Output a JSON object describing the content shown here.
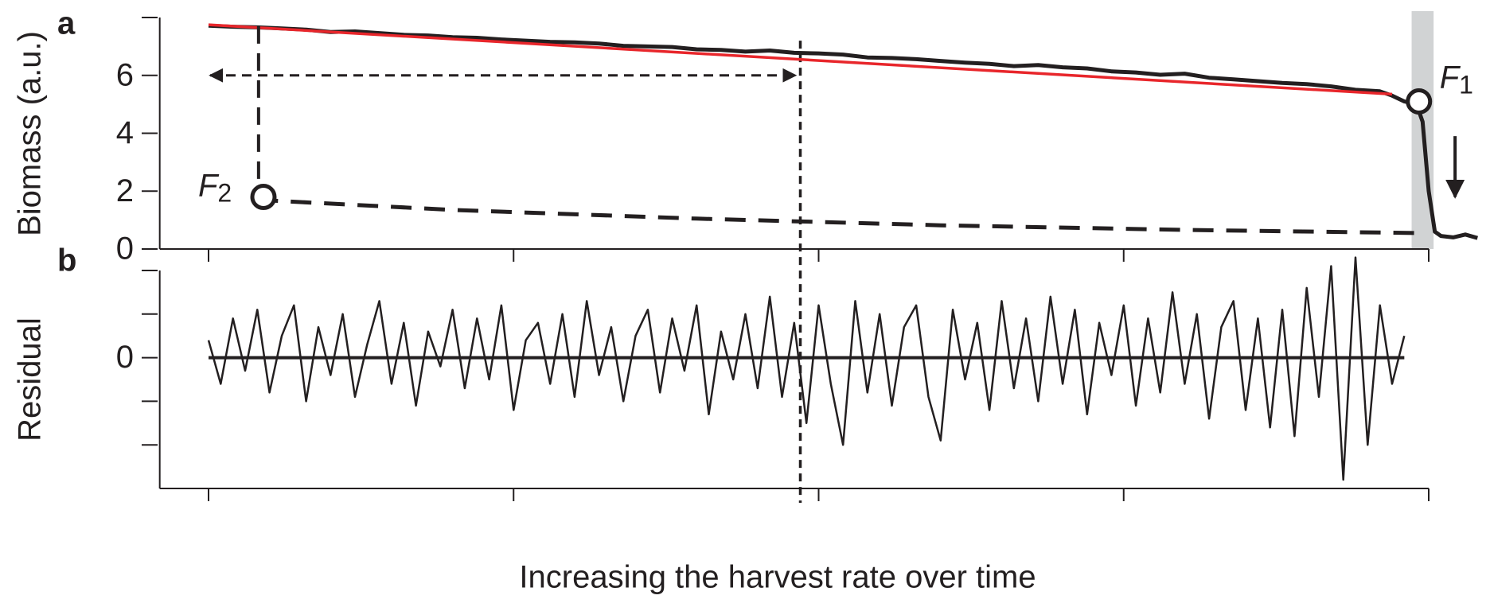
{
  "chart_data": [
    {
      "type": "line",
      "panel_label": "a",
      "ylabel": "Biomass (a.u.)",
      "xlim": [
        -4,
        100
      ],
      "minor_xticks": [
        0,
        25,
        50,
        75,
        100
      ],
      "ylim": [
        0,
        8
      ],
      "yticks": [
        0,
        2,
        4,
        6
      ],
      "minor_yticks": [
        8
      ],
      "series": [
        {
          "name": "biomass",
          "color": "#231f20",
          "x": [
            0,
            2,
            4,
            6,
            8,
            10,
            12,
            14,
            16,
            18,
            20,
            22,
            24,
            26,
            28,
            30,
            32,
            34,
            36,
            38,
            40,
            42,
            44,
            46,
            48,
            50,
            52,
            54,
            56,
            58,
            60,
            62,
            64,
            66,
            68,
            70,
            72,
            74,
            76,
            78,
            80,
            82,
            84,
            86,
            88,
            90,
            92,
            94,
            96,
            97,
            98,
            99,
            99.5,
            100,
            100.5,
            101,
            102,
            103,
            104
          ],
          "values": [
            7.72,
            7.68,
            7.66,
            7.62,
            7.58,
            7.5,
            7.52,
            7.46,
            7.4,
            7.38,
            7.32,
            7.3,
            7.24,
            7.2,
            7.16,
            7.14,
            7.1,
            7.02,
            7.0,
            6.98,
            6.9,
            6.88,
            6.82,
            6.86,
            6.78,
            6.76,
            6.72,
            6.62,
            6.6,
            6.56,
            6.5,
            6.44,
            6.4,
            6.32,
            6.36,
            6.28,
            6.24,
            6.14,
            6.1,
            6.02,
            6.06,
            5.92,
            5.86,
            5.8,
            5.74,
            5.7,
            5.62,
            5.5,
            5.45,
            5.3,
            5.1,
            5.0,
            4.4,
            2.0,
            0.6,
            0.45,
            0.4,
            0.5,
            0.38
          ]
        },
        {
          "name": "trend",
          "color": "#e8262b",
          "x": [
            0,
            97
          ],
          "values": [
            7.75,
            5.35
          ]
        },
        {
          "name": "alternative state",
          "color": "#231f20",
          "dashed": true,
          "x": [
            4,
            20,
            40,
            60,
            80,
            99.5
          ],
          "values": [
            1.7,
            1.35,
            1.05,
            0.82,
            0.66,
            0.55
          ]
        }
      ],
      "shade_x": [
        98.6,
        100.4
      ],
      "shade_color": "#d1d3d4",
      "guide_x": 48.5,
      "arrow": {
        "x": [
          0,
          48.5
        ],
        "y": 6
      },
      "points": [
        {
          "label": "F",
          "sub": "1",
          "x": 99.2,
          "y": 5.1
        },
        {
          "label": "F",
          "sub": "2",
          "x": 4.5,
          "y": 1.8
        }
      ]
    },
    {
      "type": "line",
      "panel_label": "b",
      "ylabel": "Residual",
      "xlabel": "Increasing the harvest rate over time",
      "xlim": [
        -4,
        100
      ],
      "minor_xticks": [
        0,
        25,
        50,
        75,
        100
      ],
      "ylim": [
        -3,
        2
      ],
      "yticks": [
        0
      ],
      "minor_yticks": [
        -2,
        -1,
        1,
        2
      ],
      "series": [
        {
          "name": "residual",
          "color": "#231f20",
          "x": [
            0,
            1,
            2,
            3,
            4,
            5,
            6,
            7,
            8,
            9,
            10,
            11,
            12,
            13,
            14,
            15,
            16,
            17,
            18,
            19,
            20,
            21,
            22,
            23,
            24,
            25,
            26,
            27,
            28,
            29,
            30,
            31,
            32,
            33,
            34,
            35,
            36,
            37,
            38,
            39,
            40,
            41,
            42,
            43,
            44,
            45,
            46,
            47,
            48,
            49,
            50,
            51,
            52,
            53,
            54,
            55,
            56,
            57,
            58,
            59,
            60,
            61,
            62,
            63,
            64,
            65,
            66,
            67,
            68,
            69,
            70,
            71,
            72,
            73,
            74,
            75,
            76,
            77,
            78,
            79,
            80,
            81,
            82,
            83,
            84,
            85,
            86,
            87,
            88,
            89,
            90,
            91,
            92,
            93,
            94,
            95,
            96,
            97,
            98
          ],
          "values": [
            0.4,
            -0.6,
            0.9,
            -0.3,
            1.1,
            -0.8,
            0.5,
            1.2,
            -1.0,
            0.7,
            -0.4,
            1.0,
            -0.9,
            0.3,
            1.3,
            -0.6,
            0.8,
            -1.1,
            0.6,
            -0.2,
            1.1,
            -0.7,
            0.9,
            -0.5,
            1.2,
            -1.2,
            0.4,
            0.8,
            -0.6,
            1.0,
            -0.9,
            1.3,
            -0.4,
            0.7,
            -1.0,
            0.5,
            1.1,
            -0.8,
            0.9,
            -0.3,
            1.2,
            -1.3,
            0.6,
            -0.5,
            1.0,
            -0.7,
            1.4,
            -0.9,
            0.8,
            -1.5,
            1.2,
            -0.6,
            -2.0,
            1.3,
            -0.8,
            1.0,
            -1.1,
            0.7,
            1.2,
            -0.9,
            -1.9,
            1.1,
            -0.5,
            0.8,
            -1.2,
            1.3,
            -0.7,
            0.9,
            -1.0,
            1.4,
            -0.6,
            1.1,
            -1.3,
            0.8,
            -0.4,
            1.2,
            -1.1,
            0.9,
            -0.8,
            1.5,
            -0.6,
            1.0,
            -1.4,
            0.7,
            1.3,
            -1.2,
            0.9,
            -1.6,
            1.1,
            -1.8,
            1.6,
            -0.9,
            2.1,
            -2.8,
            2.3,
            -2.0,
            1.2,
            -0.6,
            0.5
          ]
        }
      ]
    }
  ]
}
